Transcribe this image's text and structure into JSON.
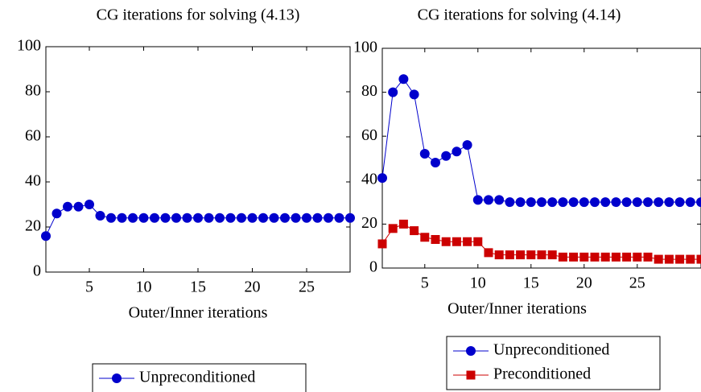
{
  "chart_data": [
    {
      "type": "line",
      "title": "CG iterations for solving (4.13)",
      "x_label": "Outer/Inner iterations",
      "x": [
        1,
        2,
        3,
        4,
        5,
        6,
        7,
        8,
        9,
        10,
        11,
        12,
        13,
        14,
        15,
        16,
        17,
        18,
        19,
        20,
        21,
        22,
        23,
        24,
        25,
        26,
        27,
        28,
        29
      ],
      "series": [
        {
          "name": "Unpreconditioned",
          "color": "#0000cc",
          "marker": "circle",
          "values": [
            16,
            26,
            29,
            29,
            30,
            25,
            24,
            24,
            24,
            24,
            24,
            24,
            24,
            24,
            24,
            24,
            24,
            24,
            24,
            24,
            24,
            24,
            24,
            24,
            24,
            24,
            24,
            24,
            24
          ]
        }
      ],
      "xlim": [
        1,
        29
      ],
      "xticks": [
        5,
        10,
        15,
        20,
        25
      ],
      "ylim": [
        0,
        100
      ],
      "yticks": [
        0,
        20,
        40,
        60,
        80,
        100
      ],
      "legend": "below"
    },
    {
      "type": "line",
      "title": "CG iterations for solving (4.14)",
      "x_label": "Outer/Inner iterations",
      "x": [
        1,
        2,
        3,
        4,
        5,
        6,
        7,
        8,
        9,
        10,
        11,
        12,
        13,
        14,
        15,
        16,
        17,
        18,
        19,
        20,
        21,
        22,
        23,
        24,
        25,
        26,
        27,
        28,
        29,
        30,
        31
      ],
      "series": [
        {
          "name": "Unpreconditioned",
          "color": "#0000cc",
          "marker": "circle",
          "values": [
            41,
            80,
            86,
            79,
            52,
            48,
            51,
            53,
            56,
            31,
            31,
            31,
            30,
            30,
            30,
            30,
            30,
            30,
            30,
            30,
            30,
            30,
            30,
            30,
            30,
            30,
            30,
            30,
            30,
            30,
            30
          ]
        },
        {
          "name": "Preconditioned",
          "color": "#cc0000",
          "marker": "square",
          "values": [
            11,
            18,
            20,
            17,
            14,
            13,
            12,
            12,
            12,
            12,
            7,
            6,
            6,
            6,
            6,
            6,
            6,
            5,
            5,
            5,
            5,
            5,
            5,
            5,
            5,
            5,
            4,
            4,
            4,
            4,
            4
          ]
        }
      ],
      "xlim": [
        1,
        31
      ],
      "xticks": [
        5,
        10,
        15,
        20,
        25
      ],
      "ylim": [
        0,
        100
      ],
      "yticks": [
        0,
        20,
        40,
        60,
        80,
        100
      ],
      "legend": "below"
    }
  ]
}
